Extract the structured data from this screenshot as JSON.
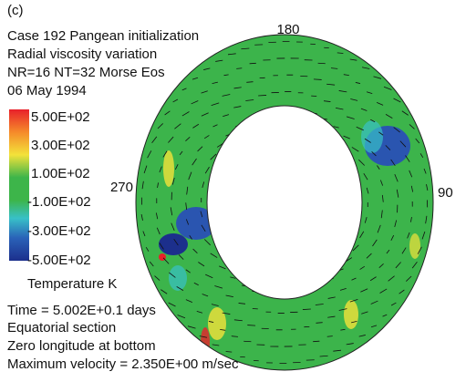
{
  "panel_label": "(c)",
  "header": [
    "Case 192 Pangean initialization",
    "Radial viscosity variation",
    "NR=16 NT=32 Morse Eos",
    "06 May 1994"
  ],
  "colorbar": {
    "labels": [
      "5.00E+02",
      "3.00E+02",
      "1.00E+02",
      "-1.00E+02",
      "-3.00E+02",
      "-5.00E+02"
    ],
    "title": "Temperature K"
  },
  "angle_labels": {
    "top": "180",
    "right": "90",
    "left": "270"
  },
  "footer": [
    "Time = 5.002E+0.1 days",
    "Equatorial section",
    "Zero longitude at bottom",
    "Maximum velocity = 2.350E+00 m/sec"
  ]
}
